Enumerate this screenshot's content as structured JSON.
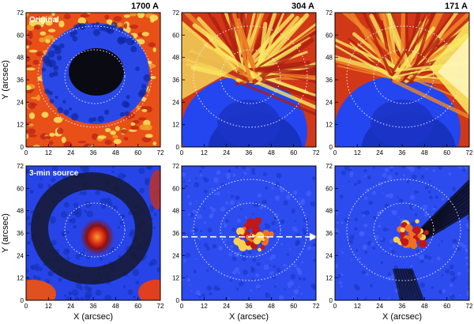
{
  "figure": {
    "panels": [
      {
        "key": "a",
        "row": 0,
        "col": 0,
        "wavelength": "1700 A",
        "inset_label": "Original",
        "kind": "orig1700"
      },
      {
        "key": "b",
        "row": 0,
        "col": 1,
        "wavelength": "304 A",
        "inset_label": "",
        "kind": "orig304"
      },
      {
        "key": "c",
        "row": 0,
        "col": 2,
        "wavelength": "171 A",
        "inset_label": "",
        "kind": "orig171"
      },
      {
        "key": "d",
        "row": 1,
        "col": 0,
        "wavelength": "",
        "inset_label": "3-min source",
        "kind": "src1700"
      },
      {
        "key": "e",
        "row": 1,
        "col": 1,
        "wavelength": "",
        "inset_label": "",
        "kind": "src304"
      },
      {
        "key": "f",
        "row": 1,
        "col": 2,
        "wavelength": "",
        "inset_label": "",
        "kind": "src171"
      }
    ],
    "x_label": "X (arcsec)",
    "y_label": "Y (arcsec)",
    "ticks": [
      0,
      12,
      24,
      36,
      48,
      60,
      72
    ],
    "colors": {
      "dark": "#101018",
      "blue": "#2446f0",
      "red": "#e03010",
      "orange": "#f07018",
      "yellow": "#f8e860",
      "contour": "#e8e8ff",
      "arrow": "#ffffff"
    }
  }
}
